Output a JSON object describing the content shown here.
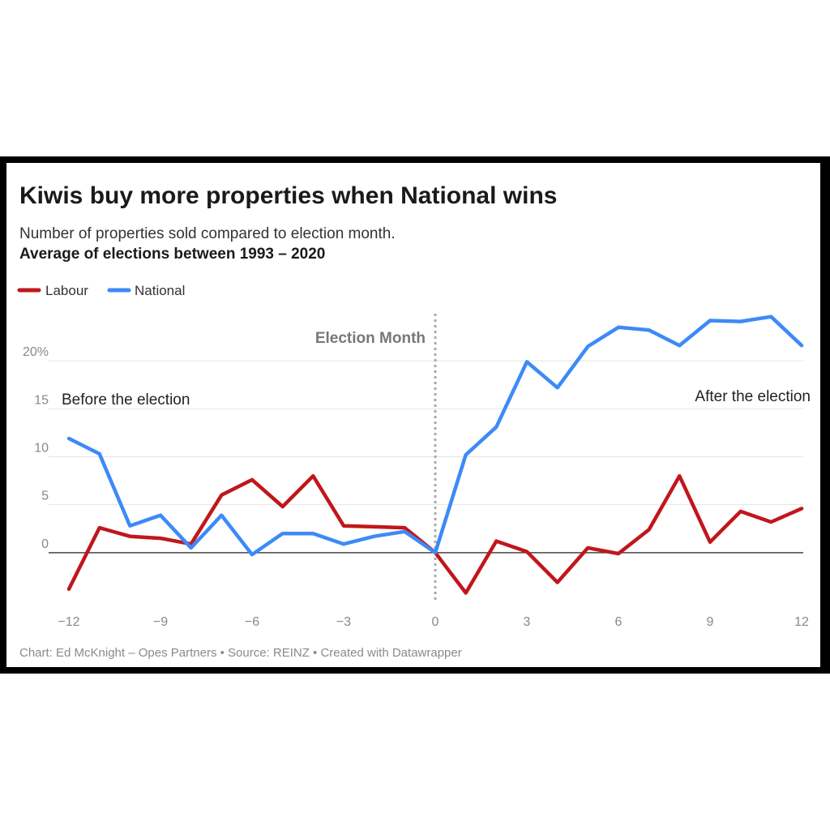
{
  "chart_data": {
    "type": "line",
    "title": "Kiwis buy more properties when National wins",
    "subtitle": "Number of properties sold compared to election month.",
    "subtitle_bold": "Average of elections between 1993 – 2020",
    "xlabel": "",
    "ylabel": "",
    "x": [
      -12,
      -11,
      -10,
      -9,
      -8,
      -7,
      -6,
      -5,
      -4,
      -3,
      -2,
      -1,
      0,
      1,
      2,
      3,
      4,
      5,
      6,
      7,
      8,
      9,
      10,
      11,
      12
    ],
    "series": [
      {
        "name": "Labour",
        "color": "#c0171c",
        "values": [
          -3.8,
          2.6,
          1.7,
          1.5,
          0.9,
          6.0,
          7.6,
          4.8,
          8.0,
          2.8,
          2.7,
          2.6,
          0.0,
          -4.2,
          1.2,
          0.1,
          -3.1,
          0.5,
          -0.1,
          2.4,
          8.0,
          1.1,
          4.3,
          3.2,
          4.6
        ]
      },
      {
        "name": "National",
        "color": "#3d8af7",
        "values": [
          11.9,
          10.3,
          2.8,
          3.9,
          0.5,
          3.9,
          -0.2,
          2.0,
          2.0,
          0.9,
          1.7,
          2.2,
          0.0,
          10.2,
          13.1,
          19.9,
          17.2,
          21.5,
          23.5,
          23.2,
          21.6,
          24.2,
          24.1,
          24.6,
          21.6
        ]
      }
    ],
    "xticks": [
      -12,
      -9,
      -6,
      -3,
      0,
      3,
      6,
      9,
      12
    ],
    "xtick_labels": [
      "−12",
      "−9",
      "−6",
      "−3",
      "0",
      "3",
      "6",
      "9",
      "12"
    ],
    "yticks": [
      0,
      5,
      10,
      15,
      20
    ],
    "ytick_labels": [
      "0",
      "5",
      "10",
      "15",
      "20%"
    ],
    "xlim": [
      -12,
      12
    ],
    "ylim": [
      -5,
      25
    ],
    "grid": true,
    "legend": "top-left",
    "annotations": {
      "election_month": "Election Month",
      "before": "Before the election",
      "after": "After the election"
    },
    "footer": "Chart: Ed McKnight – Opes Partners • Source: REINZ • Created with Datawrapper"
  }
}
